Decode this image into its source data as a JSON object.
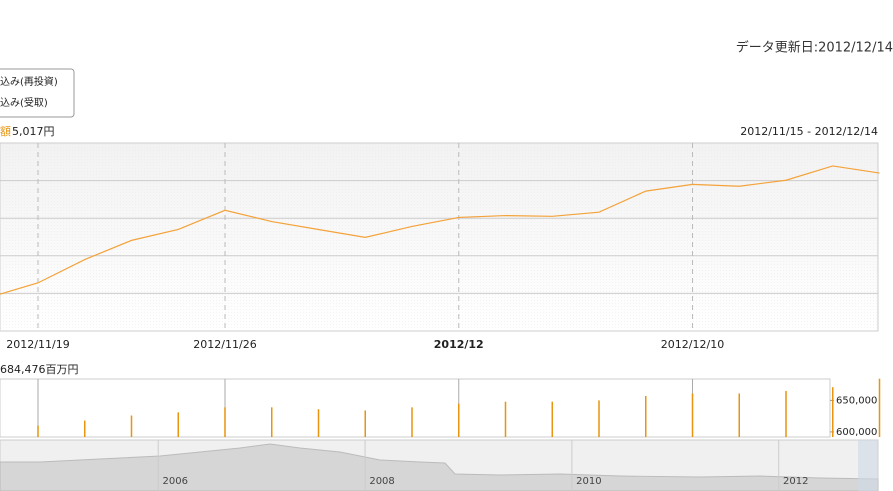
{
  "header": {
    "update_date": "データ更新日:2012/12/14",
    "legend": [
      "込み(再投資)",
      "込み(受取)"
    ]
  },
  "chart_data": [
    {
      "type": "line",
      "label": "額",
      "value_label": "5,017円",
      "period": "2012/11/15 - 2012/12/14",
      "categories": [
        null,
        "2012/11/19",
        null,
        null,
        null,
        "2012/11/26",
        null,
        null,
        null,
        null,
        "2012/12",
        null,
        null,
        null,
        null,
        "2012/12/10",
        null,
        null,
        null,
        null
      ],
      "values": [
        0.91,
        1.28,
        1.9,
        2.41,
        2.7,
        3.21,
        2.91,
        2.7,
        2.49,
        2.78,
        3.02,
        3.07,
        3.05,
        3.16,
        3.72,
        3.9,
        3.85,
        4.01,
        4.39,
        4.2
      ],
      "ylim": [
        0,
        5
      ],
      "gridlines": [
        1,
        2,
        3,
        4
      ],
      "color": "#f4a239"
    },
    {
      "type": "bar",
      "total_label": "684,476百万円",
      "values": [
        null,
        610000,
        618000,
        626000,
        631000,
        639000,
        639000,
        636000,
        634000,
        639000,
        645000,
        648000,
        648000,
        650000,
        657000,
        661000,
        661000,
        665000,
        671000,
        684476
      ],
      "ylim": [
        591900,
        684000
      ],
      "yticks": [
        {
          "value": 600000,
          "label": "600,000"
        },
        {
          "value": 650000,
          "label": "650,000"
        }
      ],
      "color": "#e8940f"
    },
    {
      "type": "navigator",
      "xlim": [
        2004.47,
        2012.96
      ],
      "xticks": [
        2006,
        2008,
        2010,
        2012
      ]
    }
  ]
}
